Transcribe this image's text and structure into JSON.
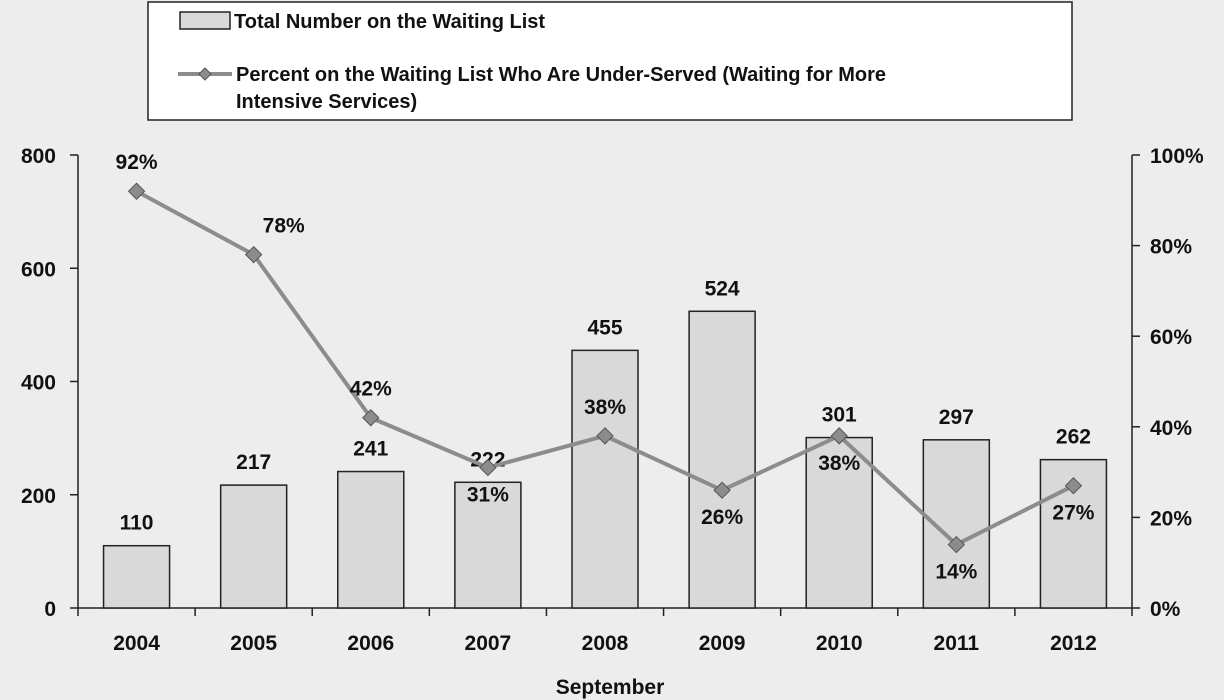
{
  "chart_data": {
    "type": "bar",
    "categories": [
      "2004",
      "2005",
      "2006",
      "2007",
      "2008",
      "2009",
      "2010",
      "2011",
      "2012"
    ],
    "series": [
      {
        "name": "Total Number on the Waiting List",
        "type": "bar",
        "axis": "left",
        "values": [
          110,
          217,
          241,
          222,
          455,
          524,
          301,
          297,
          262
        ],
        "labels": [
          "110",
          "217",
          "241",
          "222",
          "455",
          "524",
          "301",
          "297",
          "262"
        ],
        "color": "#d9d9d9"
      },
      {
        "name": "Percent on the Waiting List Who Are Under-Served (Waiting for More Intensive Services)",
        "name_lines": [
          "Percent on the Waiting List Who Are Under-Served (Waiting for More",
          "Intensive Services)"
        ],
        "type": "line",
        "axis": "right",
        "values": [
          92,
          78,
          42,
          31,
          38,
          26,
          38,
          14,
          27
        ],
        "labels": [
          "92%",
          "78%",
          "42%",
          "31%",
          "38%",
          "26%",
          "38%",
          "14%",
          "27%"
        ],
        "color": "#8c8c8c"
      }
    ],
    "xlabel": "September",
    "y_left": {
      "ylim": [
        0,
        800
      ],
      "ticks": [
        "0",
        "200",
        "400",
        "600",
        "800"
      ]
    },
    "y_right": {
      "ylim": [
        0,
        100
      ],
      "ticks": [
        "0%",
        "20%",
        "40%",
        "60%",
        "80%",
        "100%"
      ]
    },
    "legend": "top",
    "grid": false
  }
}
